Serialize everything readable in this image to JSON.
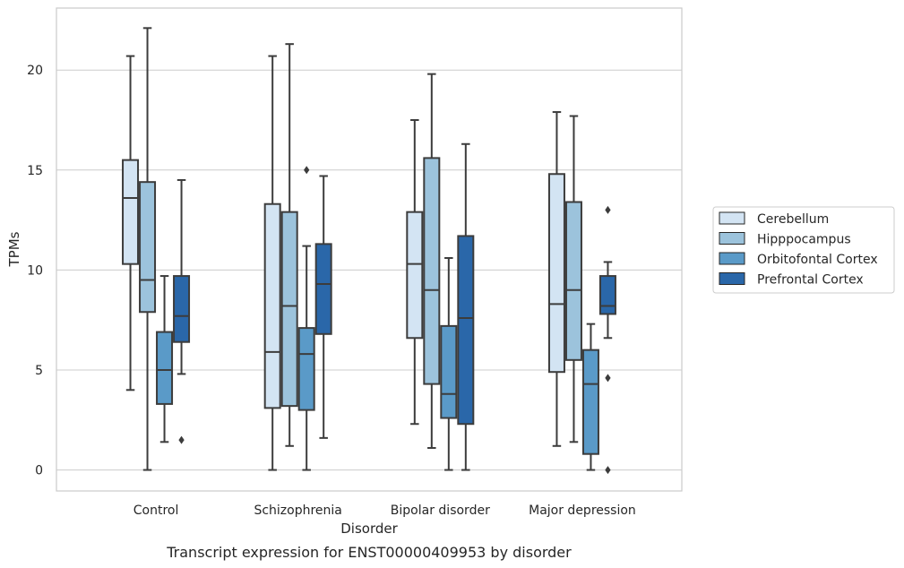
{
  "caption": "Transcript expression for ENST00000409953 by disorder",
  "chart_data": {
    "type": "box",
    "xlabel": "Disorder",
    "ylabel": "TPMs",
    "ylim": [
      -1.05,
      23.1
    ],
    "yticks": [
      0,
      5,
      10,
      15,
      20
    ],
    "grid": "horizontal",
    "legend_position": "right",
    "categories": [
      "Control",
      "Schizophrenia",
      "Bipolar disorder",
      "Major depression"
    ],
    "series": [
      {
        "name": "Cerebellum",
        "color": "#d3e4f3",
        "boxes": [
          {
            "whislo": 4.0,
            "q1": 10.3,
            "med": 13.6,
            "q3": 15.5,
            "whishi": 20.7,
            "fliers": []
          },
          {
            "whislo": 0.0,
            "q1": 3.1,
            "med": 5.9,
            "q3": 13.3,
            "whishi": 20.7,
            "fliers": []
          },
          {
            "whislo": 2.3,
            "q1": 6.6,
            "med": 10.3,
            "q3": 12.9,
            "whishi": 17.5,
            "fliers": []
          },
          {
            "whislo": 1.2,
            "q1": 4.9,
            "med": 8.3,
            "q3": 14.8,
            "whishi": 17.9,
            "fliers": []
          }
        ]
      },
      {
        "name": "Hipppocampus",
        "color": "#9cc3dc",
        "boxes": [
          {
            "whislo": 0.0,
            "q1": 7.9,
            "med": 9.5,
            "q3": 14.4,
            "whishi": 22.1,
            "fliers": []
          },
          {
            "whislo": 1.2,
            "q1": 3.2,
            "med": 8.2,
            "q3": 12.9,
            "whishi": 21.3,
            "fliers": []
          },
          {
            "whislo": 1.1,
            "q1": 4.3,
            "med": 9.0,
            "q3": 15.6,
            "whishi": 19.8,
            "fliers": []
          },
          {
            "whislo": 1.4,
            "q1": 5.5,
            "med": 9.0,
            "q3": 13.4,
            "whishi": 17.7,
            "fliers": []
          }
        ]
      },
      {
        "name": "Orbitofontal Cortex",
        "color": "#5a9ac8",
        "boxes": [
          {
            "whislo": 1.4,
            "q1": 3.3,
            "med": 5.0,
            "q3": 6.9,
            "whishi": 9.7,
            "fliers": []
          },
          {
            "whislo": 0.0,
            "q1": 3.0,
            "med": 5.8,
            "q3": 7.1,
            "whishi": 11.2,
            "fliers": [
              15.0
            ]
          },
          {
            "whislo": 0.0,
            "q1": 2.6,
            "med": 3.8,
            "q3": 7.2,
            "whishi": 10.6,
            "fliers": []
          },
          {
            "whislo": 0.0,
            "q1": 0.8,
            "med": 4.3,
            "q3": 6.0,
            "whishi": 7.3,
            "fliers": []
          }
        ]
      },
      {
        "name": "Prefrontal Cortex",
        "color": "#2a67a9",
        "boxes": [
          {
            "whislo": 4.8,
            "q1": 6.4,
            "med": 7.7,
            "q3": 9.7,
            "whishi": 14.5,
            "fliers": [
              1.5
            ]
          },
          {
            "whislo": 1.6,
            "q1": 6.8,
            "med": 9.3,
            "q3": 11.3,
            "whishi": 14.7,
            "fliers": []
          },
          {
            "whislo": 0.0,
            "q1": 2.3,
            "med": 7.6,
            "q3": 11.7,
            "whishi": 16.3,
            "fliers": []
          },
          {
            "whislo": 6.6,
            "q1": 7.8,
            "med": 8.2,
            "q3": 9.7,
            "whishi": 10.4,
            "fliers": [
              13.0,
              4.6,
              0.0
            ]
          }
        ]
      }
    ]
  }
}
